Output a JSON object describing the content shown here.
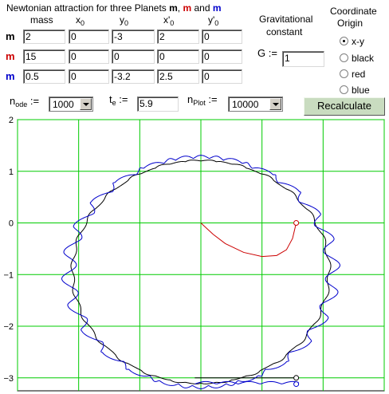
{
  "title_text": "Newtonian attraction for three Planets",
  "title_m1": "m",
  "title_sep1": ",",
  "title_m2": "m",
  "title_and": "and",
  "title_m3": "m",
  "headers": {
    "mass": "mass",
    "x0": "x",
    "y0": "y",
    "xp0": "x'",
    "yp0": "y'",
    "sub0": "0"
  },
  "rows": [
    {
      "label": "m",
      "color": "#000000",
      "mass": "2",
      "x0": "0",
      "y0": "-3",
      "xp0": "2",
      "yp0": "0"
    },
    {
      "label": "m",
      "color": "#cc0000",
      "mass": "15",
      "x0": "0",
      "y0": "0",
      "xp0": "0",
      "yp0": "0"
    },
    {
      "label": "m",
      "color": "#0000cc",
      "mass": "0.5",
      "x0": "0",
      "y0": "-3.2",
      "xp0": "2.5",
      "yp0": "0"
    }
  ],
  "grav": {
    "label1": "Gravitational",
    "label2": "constant",
    "g_label": "G :=",
    "g_value": "1"
  },
  "origin": {
    "label1": "Coordinate",
    "label2": "Origin",
    "options": [
      "x-y",
      "black",
      "red",
      "blue"
    ],
    "selected": 0
  },
  "controls": {
    "n_label": "n",
    "n_sub": "ode",
    "n_assign": ":=",
    "n_value": "1000",
    "t_label": "t",
    "t_sub": "e",
    "t_assign": ":=",
    "t_value": "5.9",
    "np_label": "n",
    "np_sub": "Plot",
    "np_assign": ":=",
    "np_value": "10000",
    "recalc": "Recalculate"
  },
  "chart_data": {
    "type": "line",
    "xlim": [
      -1.5,
      1.5
    ],
    "ylim": [
      -3.25,
      2
    ],
    "y_ticks": [
      2,
      1,
      0,
      -1,
      -2,
      -3
    ],
    "y_tick_labels": [
      "2",
      "1",
      "0",
      "−1",
      "−2",
      "−3"
    ],
    "x_grid": [
      -1.5,
      -1,
      -0.5,
      0,
      0.5,
      1,
      1.5
    ],
    "grid": true,
    "grid_color": "#00cc00",
    "series": [
      {
        "color": "#000000",
        "kind": "orbit",
        "ellipse": {
          "cx": 0,
          "cy": -0.95,
          "rx": 1.05,
          "ry": 2.15
        }
      },
      {
        "color": "#0000cc",
        "kind": "epicycle",
        "ellipse": {
          "cx": 0,
          "cy": -0.95,
          "rx": 1.08,
          "ry": 2.2
        }
      },
      {
        "color": "#cc0000",
        "kind": "path",
        "x": [
          0,
          0.1,
          0.2,
          0.35,
          0.5,
          0.62,
          0.7,
          0.75,
          0.78
        ],
        "y": [
          0,
          -0.22,
          -0.4,
          -0.57,
          -0.65,
          -0.63,
          -0.52,
          -0.3,
          0
        ]
      }
    ],
    "end_markers": [
      {
        "x": 0.78,
        "y": 0,
        "color": "#cc0000"
      },
      {
        "x": 0.78,
        "y": -3.0,
        "color": "#000000"
      },
      {
        "x": 0.78,
        "y": -3.12,
        "color": "#0000cc"
      }
    ]
  }
}
